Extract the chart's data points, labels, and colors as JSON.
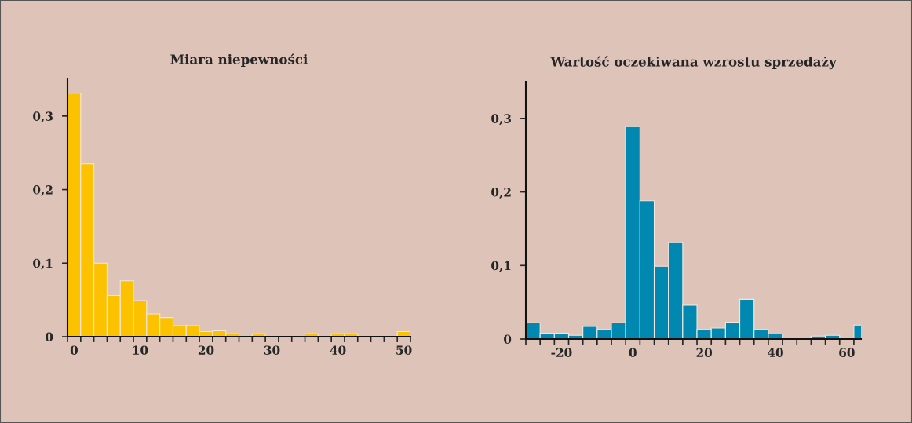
{
  "chart_data": [
    {
      "type": "histogram",
      "title": "Miara niepewności",
      "color": "#fcc200",
      "bins": [
        -1,
        1,
        3,
        5,
        7,
        9,
        11,
        13,
        15,
        17,
        19,
        21,
        23,
        25,
        27,
        29,
        31,
        33,
        35,
        37,
        39,
        41,
        43,
        45,
        47,
        49,
        51
      ],
      "values": [
        0.331,
        0.235,
        0.1,
        0.056,
        0.076,
        0.049,
        0.031,
        0.026,
        0.015,
        0.015,
        0.007,
        0.008,
        0.004,
        0,
        0.004,
        0,
        0,
        0,
        0.004,
        0,
        0.004,
        0.004,
        0,
        0,
        0,
        0.007
      ],
      "xlim": [
        -1,
        51
      ],
      "ylim": [
        0,
        0.35
      ],
      "xticks": [
        0,
        10,
        20,
        30,
        40,
        50,
        {
          "value": -1,
          "label": null
        },
        {
          "value": 1,
          "label": null
        },
        {
          "value": 3,
          "label": null
        },
        {
          "value": 5,
          "label": null
        },
        {
          "value": 7,
          "label": null
        },
        {
          "value": 9,
          "label": null
        },
        {
          "value": 11,
          "label": null
        },
        {
          "value": 13,
          "label": null
        },
        {
          "value": 15,
          "label": null
        },
        {
          "value": 17,
          "label": null
        },
        {
          "value": 19,
          "label": null
        },
        {
          "value": 21,
          "label": null
        },
        {
          "value": 23,
          "label": null
        },
        {
          "value": 25,
          "label": null
        },
        {
          "value": 27,
          "label": null
        },
        {
          "value": 29,
          "label": null
        },
        {
          "value": 31,
          "label": null
        },
        {
          "value": 33,
          "label": null
        },
        {
          "value": 35,
          "label": null
        },
        {
          "value": 37,
          "label": null
        },
        {
          "value": 39,
          "label": null
        },
        {
          "value": 41,
          "label": null
        },
        {
          "value": 43,
          "label": null
        },
        {
          "value": 45,
          "label": null
        },
        {
          "value": 47,
          "label": null
        },
        {
          "value": 49,
          "label": null
        },
        {
          "value": 51,
          "label": null
        }
      ],
      "yticks": [
        0,
        {
          "value": 0.1,
          "label": "0,1"
        },
        {
          "value": 0.2,
          "label": "0,2"
        },
        {
          "value": 0.3,
          "label": "0,3"
        }
      ],
      "grid": false,
      "legend": false
    },
    {
      "type": "histogram",
      "title": "Wartość oczekiwana wzrostu sprzedaży",
      "color": "#0088b0",
      "bins": [
        -30,
        -26,
        -22,
        -18,
        -14,
        -10,
        -6,
        -2,
        2,
        6,
        10,
        14,
        18,
        22,
        26,
        30,
        34,
        38,
        42,
        46,
        50,
        54,
        58,
        62,
        66
      ],
      "values": [
        0.022,
        0.008,
        0.008,
        0.005,
        0.017,
        0.013,
        0.022,
        0.289,
        0.188,
        0.099,
        0.131,
        0.046,
        0.013,
        0.015,
        0.023,
        0.054,
        0.013,
        0.007,
        0,
        0,
        0.004,
        0.005,
        0,
        0.019
      ],
      "xlim": [
        -30,
        64
      ],
      "ylim": [
        0,
        0.35
      ],
      "xticks": [
        -20,
        0,
        20,
        40,
        60,
        {
          "value": -30,
          "label": null
        },
        {
          "value": -26,
          "label": null
        },
        {
          "value": -22,
          "label": null
        },
        {
          "value": -18,
          "label": null
        },
        {
          "value": -14,
          "label": null
        },
        {
          "value": -10,
          "label": null
        },
        {
          "value": -6,
          "label": null
        },
        {
          "value": -2,
          "label": null
        },
        {
          "value": 2,
          "label": null
        },
        {
          "value": 6,
          "label": null
        },
        {
          "value": 10,
          "label": null
        },
        {
          "value": 14,
          "label": null
        },
        {
          "value": 18,
          "label": null
        },
        {
          "value": 22,
          "label": null
        },
        {
          "value": 26,
          "label": null
        },
        {
          "value": 30,
          "label": null
        },
        {
          "value": 34,
          "label": null
        },
        {
          "value": 38,
          "label": null
        },
        {
          "value": 42,
          "label": null
        },
        {
          "value": 46,
          "label": null
        },
        {
          "value": 50,
          "label": null
        },
        {
          "value": 54,
          "label": null
        },
        {
          "value": 58,
          "label": null
        },
        {
          "value": 62,
          "label": null
        }
      ],
      "yticks": [
        0,
        {
          "value": 0.1,
          "label": "0,1"
        },
        {
          "value": 0.2,
          "label": "0,2"
        },
        {
          "value": 0.3,
          "label": "0,3"
        }
      ],
      "grid": false,
      "legend": false
    }
  ]
}
